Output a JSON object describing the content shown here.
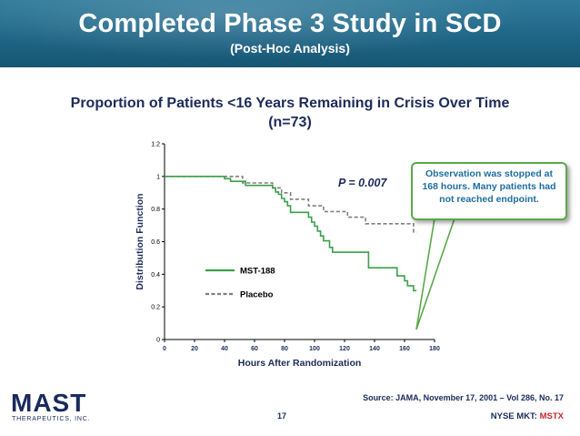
{
  "slide": {
    "title": "Completed Phase 3 Study in SCD",
    "subtitle": "(Post-Hoc Analysis)",
    "chart_heading_line1": "Proportion of Patients <16 Years Remaining in Crisis Over Time",
    "chart_heading_line2": "(n=73)",
    "callout": "Observation was stopped at 168 hours. Many patients had not reached endpoint.",
    "source": "Source: JAMA, November 17, 2001 – Vol 286, No. 17",
    "page_number": "17",
    "ticker_prefix": "NYSE MKT:",
    "ticker_symbol": "MSTX"
  },
  "logo": {
    "name": "MAST",
    "tagline": "THERAPEUTICS, INC."
  },
  "colors": {
    "header": "#1f6586",
    "mst188": "#3aa04a",
    "placebo": "#7f7f7f",
    "callout_border": "#5aa84a",
    "ticker": "#c8282e"
  },
  "chart_data": {
    "type": "line",
    "title": "",
    "xlabel": "Hours After Randomization",
    "ylabel": "Distribution Function",
    "xlim": [
      0,
      180
    ],
    "ylim": [
      0,
      1.2
    ],
    "xticks": [
      0,
      20,
      40,
      60,
      80,
      100,
      120,
      140,
      160,
      180
    ],
    "yticks": [
      0,
      0.2,
      0.4,
      0.6,
      0.8,
      1,
      1.2
    ],
    "annotation": "P = 0.007",
    "legend_position": "lower-left",
    "series": [
      {
        "name": "MST-188",
        "style": "solid",
        "points": [
          [
            0,
            1
          ],
          [
            40,
            1
          ],
          [
            40,
            0.986
          ],
          [
            44,
            0.986
          ],
          [
            44,
            0.97
          ],
          [
            54,
            0.97
          ],
          [
            54,
            0.945
          ],
          [
            72,
            0.945
          ],
          [
            72,
            0.93
          ],
          [
            74,
            0.93
          ],
          [
            74,
            0.905
          ],
          [
            76,
            0.905
          ],
          [
            76,
            0.89
          ],
          [
            78,
            0.89
          ],
          [
            78,
            0.865
          ],
          [
            80,
            0.865
          ],
          [
            80,
            0.845
          ],
          [
            82,
            0.845
          ],
          [
            82,
            0.82
          ],
          [
            84,
            0.82
          ],
          [
            84,
            0.78
          ],
          [
            96,
            0.78
          ],
          [
            96,
            0.75
          ],
          [
            98,
            0.75
          ],
          [
            98,
            0.72
          ],
          [
            100,
            0.72
          ],
          [
            100,
            0.695
          ],
          [
            102,
            0.695
          ],
          [
            102,
            0.665
          ],
          [
            104,
            0.665
          ],
          [
            104,
            0.635
          ],
          [
            106,
            0.635
          ],
          [
            106,
            0.605
          ],
          [
            110,
            0.605
          ],
          [
            110,
            0.565
          ],
          [
            112,
            0.565
          ],
          [
            112,
            0.535
          ],
          [
            136,
            0.535
          ],
          [
            136,
            0.44
          ],
          [
            155,
            0.44
          ],
          [
            155,
            0.39
          ],
          [
            160,
            0.39
          ],
          [
            160,
            0.36
          ],
          [
            162,
            0.36
          ],
          [
            162,
            0.33
          ],
          [
            166,
            0.33
          ],
          [
            166,
            0.3
          ],
          [
            168,
            0.3
          ]
        ]
      },
      {
        "name": "Placebo",
        "style": "dashed",
        "points": [
          [
            0,
            1
          ],
          [
            52,
            1
          ],
          [
            52,
            0.96
          ],
          [
            72,
            0.96
          ],
          [
            72,
            0.93
          ],
          [
            78,
            0.93
          ],
          [
            78,
            0.9
          ],
          [
            84,
            0.9
          ],
          [
            84,
            0.86
          ],
          [
            96,
            0.86
          ],
          [
            96,
            0.82
          ],
          [
            106,
            0.82
          ],
          [
            106,
            0.785
          ],
          [
            122,
            0.785
          ],
          [
            122,
            0.75
          ],
          [
            134,
            0.75
          ],
          [
            134,
            0.71
          ],
          [
            166,
            0.71
          ],
          [
            166,
            0.66
          ],
          [
            168,
            0.66
          ]
        ]
      }
    ]
  }
}
